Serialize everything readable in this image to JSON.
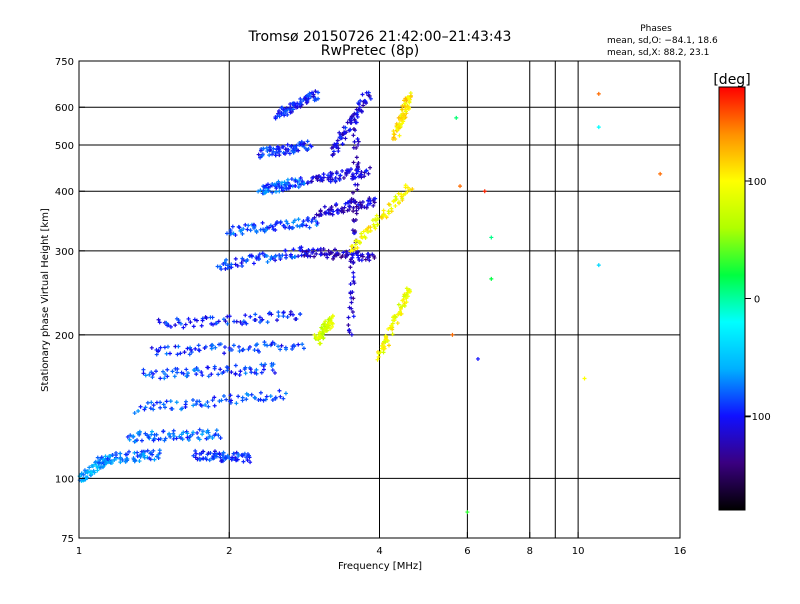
{
  "chart_data": {
    "type": "scatter",
    "title": "Tromsø 20150726 21:42:00–21:43:43",
    "subtitle": "RwPretec (8p)",
    "xlabel": "Frequency [MHz]",
    "ylabel": "Stationary phase Virtual Height [km]",
    "x_scale": "log",
    "y_scale": "log",
    "xlim": [
      1,
      16
    ],
    "ylim": [
      75,
      750
    ],
    "x_ticks": [
      {
        "value": 1,
        "label": "1"
      },
      {
        "value": 2,
        "label": "2"
      },
      {
        "value": 4,
        "label": "4"
      },
      {
        "value": 6,
        "label": "6"
      },
      {
        "value": 8,
        "label": "8"
      },
      {
        "value": 10,
        "label": "10"
      },
      {
        "value": 16,
        "label": "16"
      }
    ],
    "x_gridlines": [
      2,
      4,
      6,
      8,
      9,
      10
    ],
    "y_ticks": [
      {
        "value": 75,
        "label": "75"
      },
      {
        "value": 100,
        "label": "100"
      },
      {
        "value": 200,
        "label": "200"
      },
      {
        "value": 300,
        "label": "300"
      },
      {
        "value": 400,
        "label": "400"
      },
      {
        "value": 500,
        "label": "500"
      },
      {
        "value": 600,
        "label": "600"
      },
      {
        "value": 750,
        "label": "750"
      }
    ],
    "y_gridlines": [
      100,
      200,
      300,
      400,
      500,
      600
    ],
    "grid": true,
    "colorbar": {
      "label": "[deg]",
      "range": [
        -180,
        180
      ],
      "ticks": [
        {
          "value": 100,
          "label": "100"
        },
        {
          "value": 0,
          "label": "0"
        },
        {
          "value": -100,
          "label": "−100"
        }
      ],
      "colormap": [
        "#000000",
        "#3a0080",
        "#1010ff",
        "#00b0ff",
        "#00ffff",
        "#00ff40",
        "#b0ff00",
        "#ffff00",
        "#ff9000",
        "#ff0000"
      ]
    },
    "stats_title": "Phases",
    "stats": [
      {
        "label": "mean, sd,O:",
        "values": "−84.1, 18.6"
      },
      {
        "label": "mean, sd,X:",
        "values": "88.2, 23.1"
      }
    ],
    "series": [
      {
        "colour": "#2a7fff",
        "traces": [
          {
            "x": [
              1.0,
              1.15
            ],
            "y": [
              100,
              110
            ],
            "phase": -60
          },
          {
            "x": [
              1.1,
              1.45
            ],
            "y": [
              110,
              112
            ],
            "phase": -75
          },
          {
            "x": [
              1.25,
              1.9
            ],
            "y": [
              122,
              124
            ],
            "phase": -80
          },
          {
            "x": [
              1.7,
              2.2
            ],
            "y": [
              112,
              110
            ],
            "phase": -90
          },
          {
            "x": [
              1.3,
              2.6
            ],
            "y": [
              140,
              150
            ],
            "phase": -85
          },
          {
            "x": [
              1.35,
              2.5
            ],
            "y": [
              165,
              170
            ],
            "phase": -88
          },
          {
            "x": [
              1.4,
              2.8
            ],
            "y": [
              185,
              190
            ],
            "phase": -92
          },
          {
            "x": [
              1.45,
              2.8
            ],
            "y": [
              210,
              220
            ],
            "phase": -95
          },
          {
            "x": [
              1.9,
              2.9
            ],
            "y": [
              280,
              300
            ],
            "phase": -90
          },
          {
            "x": [
              2.0,
              3.0
            ],
            "y": [
              330,
              345
            ],
            "phase": -85
          },
          {
            "x": [
              2.3,
              2.8
            ],
            "y": [
              400,
              420
            ],
            "phase": -82
          },
          {
            "x": [
              2.3,
              2.9
            ],
            "y": [
              480,
              500
            ],
            "phase": -95
          },
          {
            "x": [
              2.5,
              3.0
            ],
            "y": [
              580,
              640
            ],
            "phase": -100
          }
        ]
      },
      {
        "colour": "#3010c0",
        "traces": [
          {
            "x": [
              2.8,
              3.9
            ],
            "y": [
              300,
              290
            ],
            "phase": -120
          },
          {
            "x": [
              3.0,
              3.9
            ],
            "y": [
              360,
              380
            ],
            "phase": -115
          },
          {
            "x": [
              2.9,
              3.8
            ],
            "y": [
              420,
              440
            ],
            "phase": -110
          },
          {
            "x": [
              3.2,
              3.8
            ],
            "y": [
              480,
              640
            ],
            "phase": -108
          },
          {
            "x": [
              3.5,
              3.6
            ],
            "y": [
              200,
              560
            ],
            "phase": -118
          }
        ]
      },
      {
        "colour": "#e0e000",
        "traces": [
          {
            "x": [
              3.5,
              4.6
            ],
            "y": [
              300,
              410
            ],
            "phase": 100
          },
          {
            "x": [
              3.0,
              3.2
            ],
            "y": [
              195,
              215
            ],
            "phase": 80
          },
          {
            "x": [
              4.0,
              4.6
            ],
            "y": [
              180,
              250
            ],
            "phase": 95
          },
          {
            "x": [
              4.3,
              4.6
            ],
            "y": [
              520,
              640
            ],
            "phase": 110
          }
        ]
      }
    ],
    "isolated_points": [
      {
        "x": 5.7,
        "y": 570,
        "phase": 10
      },
      {
        "x": 5.8,
        "y": 410,
        "phase": 150
      },
      {
        "x": 6.5,
        "y": 400,
        "phase": 170
      },
      {
        "x": 6.7,
        "y": 320,
        "phase": 5
      },
      {
        "x": 6.7,
        "y": 262,
        "phase": 20
      },
      {
        "x": 5.6,
        "y": 200,
        "phase": 150
      },
      {
        "x": 6.3,
        "y": 178,
        "phase": -100
      },
      {
        "x": 6.0,
        "y": 85,
        "phase": 30
      },
      {
        "x": 11.0,
        "y": 640,
        "phase": 150
      },
      {
        "x": 11.0,
        "y": 545,
        "phase": -20
      },
      {
        "x": 11.0,
        "y": 280,
        "phase": -40
      },
      {
        "x": 10.3,
        "y": 162,
        "phase": 100
      },
      {
        "x": 14.6,
        "y": 435,
        "phase": 150
      }
    ]
  }
}
